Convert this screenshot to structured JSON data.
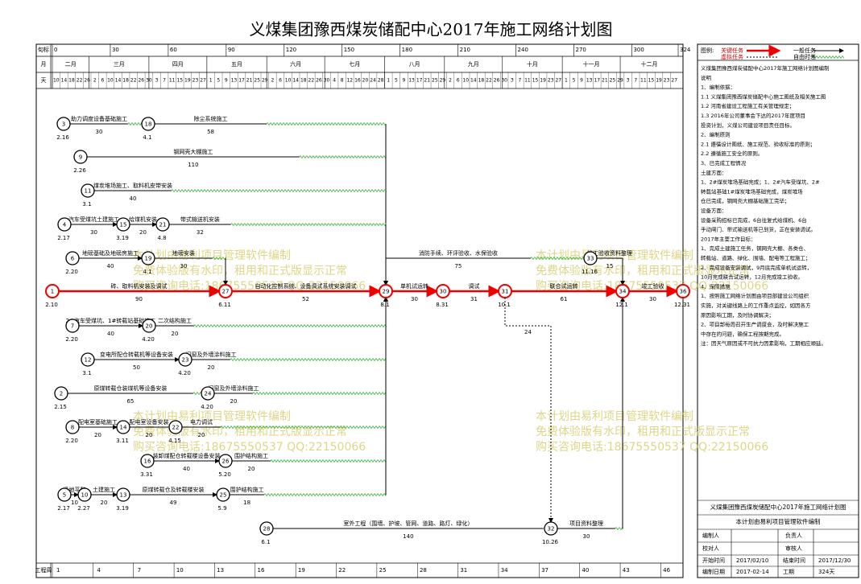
{
  "title": "义煤集团豫西煤炭储配中心2017年施工网络计划图",
  "header": {
    "row_labels": [
      "旬标",
      "月",
      "天",
      "工程周"
    ],
    "ticks": [
      0,
      30,
      60,
      90,
      120,
      150,
      180,
      210,
      240,
      270,
      300,
      324
    ],
    "months": [
      "二月",
      "三月",
      "四月",
      "五月",
      "六月",
      "七月",
      "八月",
      "九月",
      "十月",
      "十一月",
      "十二月"
    ],
    "days": [
      10,
      14,
      18,
      22,
      26,
      2,
      6,
      10,
      14,
      18,
      22,
      26,
      30,
      3,
      7,
      11,
      15,
      19,
      23,
      27,
      1,
      5,
      9,
      13,
      17,
      21,
      25,
      29,
      2,
      6,
      10,
      14,
      18,
      22,
      26,
      30,
      4,
      8,
      12,
      16,
      20,
      24,
      28,
      1,
      5,
      9,
      13,
      17,
      21,
      25,
      29,
      2,
      6,
      10,
      14,
      18,
      22,
      26,
      30,
      3,
      7,
      11,
      15,
      19,
      23,
      27,
      1,
      5,
      9,
      13,
      17,
      21,
      25,
      29,
      3,
      7,
      11,
      15,
      19,
      23,
      27
    ],
    "weeks": [
      1,
      4,
      7,
      10,
      13,
      16,
      19,
      22,
      25,
      28,
      31,
      34,
      37,
      40,
      43,
      46
    ]
  },
  "nodes": [
    {
      "id": 1,
      "date": "2.10"
    },
    {
      "id": 3,
      "date": "2.16"
    },
    {
      "id": 18,
      "date": "4.1"
    },
    {
      "id": 9,
      "date": "2.26"
    },
    {
      "id": 11,
      "date": "3.1"
    },
    {
      "id": 4,
      "date": "2.17"
    },
    {
      "id": 15,
      "date": "3.19"
    },
    {
      "id": 21,
      "date": "4.8"
    },
    {
      "id": 6,
      "date": "2.20"
    },
    {
      "id": 19,
      "date": "4.1"
    },
    {
      "id": 27,
      "date": "6.11"
    },
    {
      "id": 29,
      "date": "8.1"
    },
    {
      "id": 30,
      "date": "8.31"
    },
    {
      "id": 31,
      "date": "10.1"
    },
    {
      "id": 34,
      "date": "12.1"
    },
    {
      "id": 36,
      "date": "12.31"
    },
    {
      "id": 33,
      "date": "11.16"
    },
    {
      "id": 7,
      "date": "2.20"
    },
    {
      "id": 20,
      "date": "4.20"
    },
    {
      "id": 12,
      "date": "3.1"
    },
    {
      "id": 23,
      "date": "4.20"
    },
    {
      "id": 2,
      "date": "2.15"
    },
    {
      "id": 24,
      "date": "4.20"
    },
    {
      "id": 8,
      "date": "2.20"
    },
    {
      "id": 14,
      "date": "3.11"
    },
    {
      "id": 22,
      "date": "4.15"
    },
    {
      "id": 16,
      "date": "3.31"
    },
    {
      "id": 26,
      "date": "5.20"
    },
    {
      "id": 5,
      "date": "2.17"
    },
    {
      "id": 10,
      "date": "2.27"
    },
    {
      "id": 13,
      "date": "3.19"
    },
    {
      "id": 25,
      "date": "5.9"
    },
    {
      "id": 28,
      "date": "6.1"
    },
    {
      "id": 32,
      "date": "10.26"
    }
  ],
  "edges": [
    {
      "from": 1,
      "to": 27,
      "label": "砖、取料机安装及调试",
      "duration": 90,
      "critical": true
    },
    {
      "from": 27,
      "to": 29,
      "label": "自动化控制系统、设备调试系统安装调试",
      "duration": 52,
      "critical": true
    },
    {
      "from": 29,
      "to": 30,
      "label": "单机试运转",
      "duration": 30,
      "critical": true
    },
    {
      "from": 30,
      "to": 31,
      "label": "调试",
      "duration": 31,
      "critical": true
    },
    {
      "from": 31,
      "to": 34,
      "label": "联合试运转",
      "duration": 61,
      "critical": true
    },
    {
      "from": 34,
      "to": 36,
      "label": "竣工验收",
      "duration": 30,
      "critical": true
    },
    {
      "from": 3,
      "to": 18,
      "label": "助力调度设备基础施工",
      "duration": 30
    },
    {
      "from": 18,
      "to": 29,
      "label": "除尘系统施工",
      "duration": 58
    },
    {
      "from": 9,
      "to": 29,
      "label": "钢网壳大棚施工",
      "duration": 110
    },
    {
      "from": 11,
      "to": 29,
      "label": "煤炭堆场施工、取料机皮带安装",
      "duration": 40
    },
    {
      "from": 4,
      "to": 15,
      "label": "汽车受煤坑土建施工",
      "duration": 30
    },
    {
      "from": 15,
      "to": 21,
      "label": "给煤机安装",
      "duration": 20
    },
    {
      "from": 21,
      "to": 29,
      "label": "带式输送机安装",
      "duration": 32
    },
    {
      "from": 6,
      "to": 19,
      "label": "地磅基础及地磅房施工",
      "duration": 40
    },
    {
      "from": 19,
      "to": 27,
      "label": "地磅安装",
      "duration": 30
    },
    {
      "from": 29,
      "to": 33,
      "label": "消防手续、环评验收、水保验收",
      "duration": 75
    },
    {
      "from": 33,
      "to": 34,
      "label": "竣工验收资料整理",
      "duration": 15
    },
    {
      "from": 31,
      "to": 32,
      "duration": 24,
      "dummy": true
    },
    {
      "from": 7,
      "to": 20,
      "label": "2#汽车受煤坑、1#转载站基础施工",
      "duration": 40
    },
    {
      "from": 20,
      "to": 29,
      "label": "二次结构施工",
      "duration": 20
    },
    {
      "from": 12,
      "to": 23,
      "label": "变电所配仓转载机等设备安装",
      "duration": 50
    },
    {
      "from": 23,
      "to": 29,
      "label": "门窗及外墙涂料施工",
      "duration": 20
    },
    {
      "from": 2,
      "to": 24,
      "label": "原煤转载仓装煤机等设备安装",
      "duration": 65
    },
    {
      "from": 24,
      "to": 29,
      "label": "门窗及外墙涂料施工",
      "duration": 20
    },
    {
      "from": 8,
      "to": 14,
      "label": "配电室基础施工",
      "duration": 20
    },
    {
      "from": 14,
      "to": 22,
      "label": "配电室设备安装",
      "duration": 20
    },
    {
      "from": 22,
      "to": 29,
      "label": "电力调试",
      "duration": 20
    },
    {
      "from": 16,
      "to": 26,
      "label": "装卸煤配仓转载楼设备安装",
      "duration": 40
    },
    {
      "from": 26,
      "to": 29,
      "label": "围护结构施工",
      "duration": 20
    },
    {
      "from": 5,
      "to": 10,
      "label": "场地平整",
      "duration": 10
    },
    {
      "from": 10,
      "to": 13,
      "label": "土建施工",
      "duration": 20
    },
    {
      "from": 13,
      "to": 25,
      "label": "原煤转载仓及转载楼安装",
      "duration": 49
    },
    {
      "from": 25,
      "to": 29,
      "label": "围护结构施工",
      "duration": 18
    },
    {
      "from": 28,
      "to": 32,
      "label": "室外工程（围墙、护坡、管网、道路、路灯、绿化）",
      "duration": 140
    },
    {
      "from": 32,
      "to": 34,
      "label": "项目资料整理",
      "duration": 30
    }
  ],
  "legend": {
    "title": "图例:",
    "items": [
      "关键任务",
      "一般任务",
      "虚拟任务",
      "自由时差"
    ]
  },
  "notes": [
    "义煤集团豫西煤炭储配中心2017年施工网络计划图编制",
    "说明",
    "1、编制依据：",
    "1.1 义煤集团豫西煤炭储配中心施工图纸及相关施工图",
    "1.2 河南省建设工程施工有关管理规定；",
    "1.3 2016年公司董事会下达的2017年度项目",
    "投资计划，义煤公司建设项目责任目标。",
    "2、编制原则",
    "2.1 遵循设计图纸、施工规范、验收标准的原则；",
    "2.2 遵循施工安全的原则。",
    "3、已完成工程情况",
    "土建方面：",
    "1、2#煤炭堆场基础完成；1、2#汽车受煤坑、2#",
    "转载站基础1#煤炭堆场基础完成，煤炭堆场",
    "仓已完成，钢网壳大棚基础施工完毕；",
    "设备方面：",
    "设备采购招标已完成，6台往复式给煤机、6台",
    "手动闸门、带式输送机等已到货，正在安装调试。",
    "2017年主要工作目标：",
    "1、完成土建施工任务，钢网壳大棚、各类仓、",
    "转载站、道路、绿化、围墙、配电等工程施工；",
    "2、完成设备安装调试，9月底完成单机试运转，",
    "10月完成联合试运转，12月完成竣工验收。",
    "4、保障措施",
    "1、按照施工网络计划图由项目部建设公司组织",
    "实施，对关键线路上的工作重点监控，如因各方",
    "原因影响工期，及时协调解决；",
    "2、项目部每周召开生产调度会，及时解决施工",
    "中存在的问题，确保工程按期完成。",
    "注：因天气原因或不可抗力因素影响，工期相应顺延。"
  ],
  "footer": {
    "title": "义煤集团豫西煤炭储配中心2017年施工网络计划图",
    "subtitle": "本计划由易利项目管理软件编制",
    "sign": [
      [
        "编制人",
        "负责人"
      ],
      [
        "校对人",
        "审核人"
      ]
    ],
    "info": [
      [
        "开始时间",
        "2017/02/10",
        "结束时间",
        "2017/12/30"
      ],
      [
        "编制日期",
        "2017-02-14",
        "工期",
        "324天"
      ]
    ]
  },
  "watermark": [
    "本计划由易利项目管理软件编制",
    "免费体验版有水印，租用和正式版显示正常",
    "购买咨询电话:18675550537 QQ:22150066"
  ]
}
